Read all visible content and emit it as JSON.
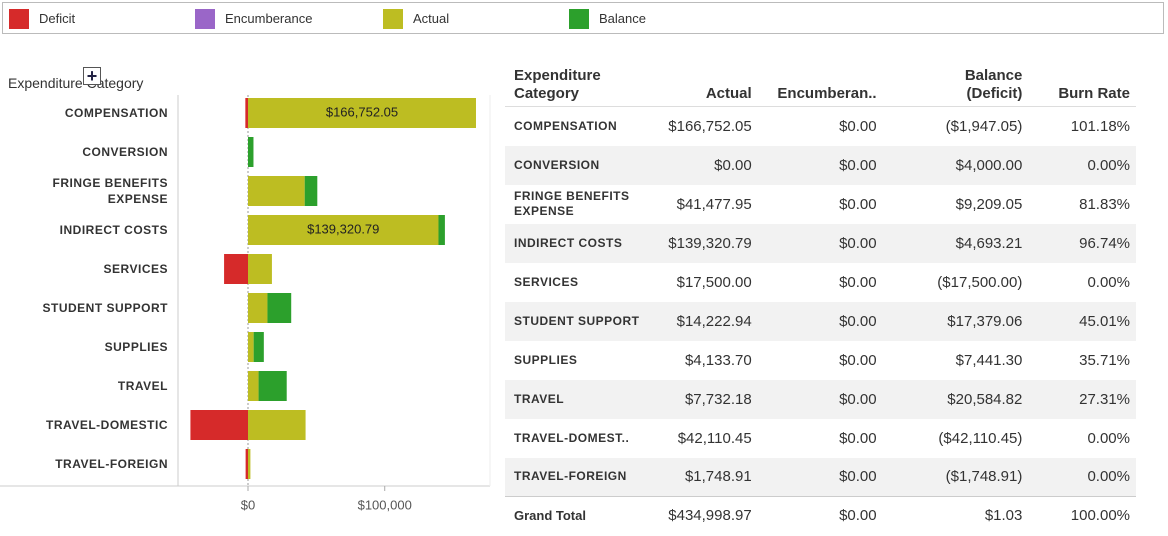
{
  "chart_data": {
    "type": "bar",
    "orientation": "horizontal",
    "stacked": true,
    "axis_label": "Expenditure Category",
    "categories": [
      "COMPENSATION",
      "CONVERSION",
      "FRINGE BENEFITS EXPENSE",
      "INDIRECT COSTS",
      "SERVICES",
      "STUDENT SUPPORT",
      "SUPPLIES",
      "TRAVEL",
      "TRAVEL-DOMESTIC",
      "TRAVEL-FOREIGN"
    ],
    "series": [
      {
        "name": "Deficit",
        "color": "#d62a2a",
        "values": [
          -1947.05,
          null,
          null,
          null,
          -17500,
          null,
          null,
          null,
          -42110.45,
          -1748.91
        ]
      },
      {
        "name": "Encumberance",
        "color": "#9a66c8",
        "values": [
          0,
          0,
          0,
          0,
          0,
          0,
          0,
          0,
          0,
          0
        ]
      },
      {
        "name": "Actual",
        "color": "#bdbd22",
        "values": [
          166752.05,
          0,
          41477.95,
          139320.79,
          17500,
          14222.94,
          4133.7,
          7732.18,
          42110.45,
          1748.91
        ],
        "value_labels": [
          "$166,752.05",
          null,
          null,
          "$139,320.79",
          null,
          null,
          null,
          null,
          null,
          null
        ]
      },
      {
        "name": "Balance",
        "color": "#2ca02c",
        "values": [
          null,
          4000,
          9209.05,
          4693.21,
          null,
          17379.06,
          7441.3,
          20584.82,
          null,
          null
        ]
      }
    ],
    "xlim": [
      -51200,
      177000
    ],
    "xticks": [
      {
        "value": 0,
        "label": "$0"
      },
      {
        "value": 100000,
        "label": "$100,000"
      }
    ]
  },
  "table": {
    "columns": [
      "Expenditure Category",
      "Actual",
      "Encumberan..",
      "Balance (Deficit)",
      "Burn Rate"
    ],
    "rows": [
      [
        "COMPENSATION",
        "$166,752.05",
        "$0.00",
        "($1,947.05)",
        "101.18%"
      ],
      [
        "CONVERSION",
        "$0.00",
        "$0.00",
        "$4,000.00",
        "0.00%"
      ],
      [
        "FRINGE BENEFITS EXPENSE",
        "$41,477.95",
        "$0.00",
        "$9,209.05",
        "81.83%"
      ],
      [
        "INDIRECT COSTS",
        "$139,320.79",
        "$0.00",
        "$4,693.21",
        "96.74%"
      ],
      [
        "SERVICES",
        "$17,500.00",
        "$0.00",
        "($17,500.00)",
        "0.00%"
      ],
      [
        "STUDENT SUPPORT",
        "$14,222.94",
        "$0.00",
        "$17,379.06",
        "45.01%"
      ],
      [
        "SUPPLIES",
        "$4,133.70",
        "$0.00",
        "$7,441.30",
        "35.71%"
      ],
      [
        "TRAVEL",
        "$7,732.18",
        "$0.00",
        "$20,584.82",
        "27.31%"
      ],
      [
        "TRAVEL-DOMEST..",
        "$42,110.45",
        "$0.00",
        "($42,110.45)",
        "0.00%"
      ],
      [
        "TRAVEL-FOREIGN",
        "$1,748.91",
        "$0.00",
        "($1,748.91)",
        "0.00%"
      ]
    ],
    "total": [
      "Grand Total",
      "$434,998.97",
      "$0.00",
      "$1.03",
      "100.00%"
    ]
  }
}
